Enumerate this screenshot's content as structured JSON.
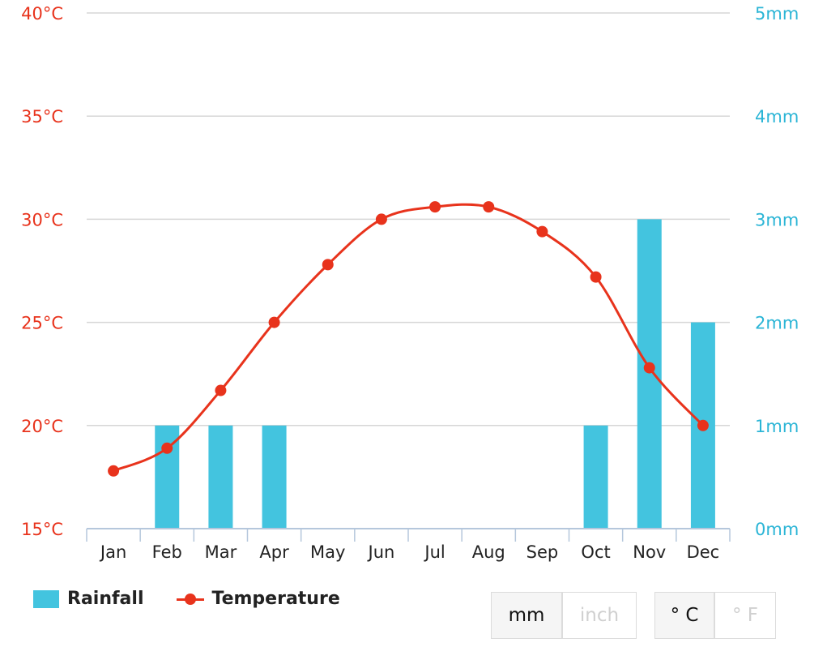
{
  "chart_data": {
    "type": "bar+line",
    "categories": [
      "Jan",
      "Feb",
      "Mar",
      "Apr",
      "May",
      "Jun",
      "Jul",
      "Aug",
      "Sep",
      "Oct",
      "Nov",
      "Dec"
    ],
    "series": [
      {
        "name": "Rainfall",
        "type": "bar",
        "axis": "right",
        "unit": "mm",
        "values": [
          0,
          1,
          1,
          1,
          0,
          0,
          0,
          0,
          0,
          1,
          3,
          2
        ]
      },
      {
        "name": "Temperature",
        "type": "line",
        "axis": "left",
        "unit": "°C",
        "values": [
          17.8,
          18.9,
          21.7,
          25.0,
          27.8,
          30.0,
          30.6,
          30.6,
          29.4,
          27.2,
          22.8,
          20.0
        ]
      }
    ],
    "y_left": {
      "range": [
        15,
        40
      ],
      "ticks": [
        "15°C",
        "20°C",
        "25°C",
        "30°C",
        "35°C",
        "40°C"
      ]
    },
    "y_right": {
      "range": [
        0,
        5
      ],
      "ticks": [
        "0mm",
        "1mm",
        "2mm",
        "3mm",
        "4mm",
        "5mm"
      ]
    },
    "grid": true,
    "legend_position": "bottom-left",
    "colors": {
      "rainfall": "#43c4df",
      "temperature": "#e8331c",
      "left_axis": "#e8331c",
      "right_axis": "#2bb5d6"
    }
  },
  "legend": {
    "rainfall": "Rainfall",
    "temperature": "Temperature"
  },
  "controls": {
    "rain_units": [
      {
        "label": "mm",
        "active": true
      },
      {
        "label": "inch",
        "active": false
      }
    ],
    "temp_units": [
      {
        "label": "° C",
        "active": true
      },
      {
        "label": "° F",
        "active": false
      }
    ]
  }
}
